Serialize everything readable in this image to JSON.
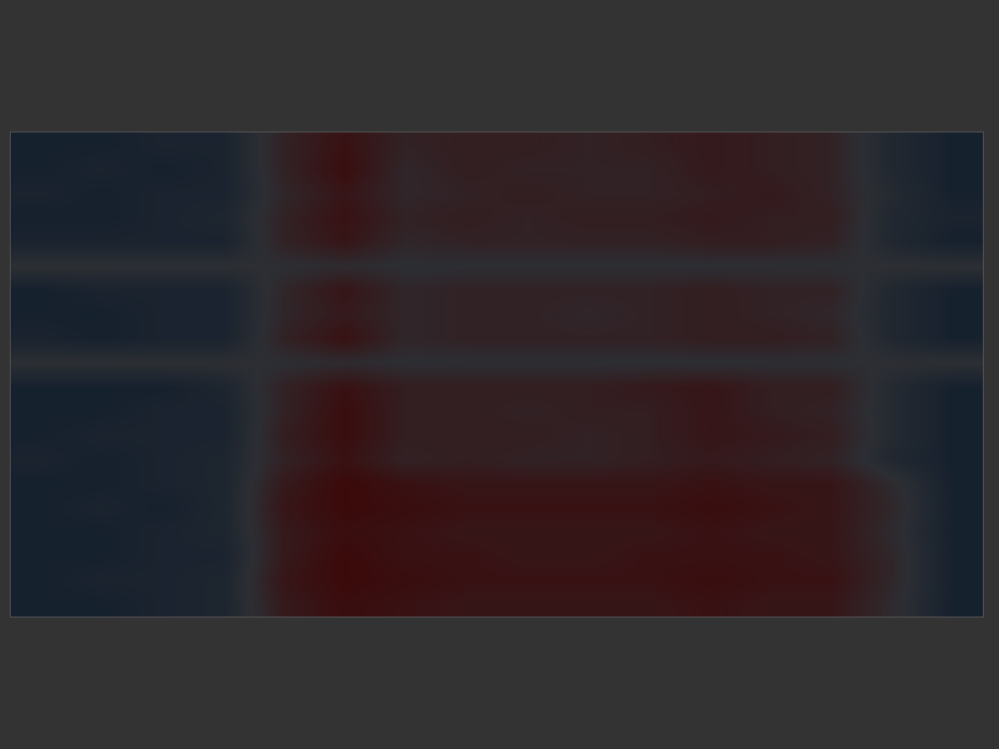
{
  "chart_data": {
    "type": "heatmap",
    "tick_labels": false,
    "grid": false,
    "xlim": [
      -0.5,
      15.5
    ],
    "ylim": [
      19.5,
      -0.5
    ],
    "zlim": [
      -1,
      1
    ],
    "colors": [
      "#08182a",
      "#2c2e33",
      "#3d0505"
    ],
    "z": [
      [
        -0.6,
        -0.6,
        -0.5,
        -0.5,
        0.3,
        0.7,
        0.3,
        0.4,
        0.4,
        0.3,
        0.4,
        0.5,
        0.4,
        0.3,
        -0.3,
        -0.6
      ],
      [
        -0.6,
        -0.5,
        -0.6,
        -0.5,
        0.3,
        0.8,
        0.2,
        0.4,
        0.3,
        0.3,
        0.3,
        0.5,
        0.4,
        0.3,
        -0.3,
        -0.6
      ],
      [
        -0.5,
        -0.6,
        -0.5,
        -0.5,
        0.2,
        0.6,
        0.2,
        0.3,
        0.4,
        0.3,
        0.3,
        0.4,
        0.5,
        0.3,
        -0.2,
        -0.6
      ],
      [
        -0.6,
        -0.6,
        -0.5,
        -0.4,
        0.3,
        0.7,
        0.3,
        0.4,
        0.3,
        0.4,
        0.4,
        0.5,
        0.4,
        0.4,
        -0.3,
        -0.5
      ],
      [
        -0.5,
        -0.5,
        -0.5,
        -0.5,
        0.3,
        0.6,
        0.2,
        0.3,
        0.3,
        0.3,
        0.3,
        0.4,
        0.4,
        0.3,
        -0.3,
        -0.6
      ],
      [
        0.0,
        0.0,
        0.0,
        0.0,
        0.0,
        0.1,
        0.0,
        0.0,
        0.0,
        0.0,
        0.0,
        0.0,
        0.0,
        0.0,
        0.0,
        0.0
      ],
      [
        -0.6,
        -0.5,
        -0.5,
        -0.5,
        0.2,
        0.6,
        0.2,
        0.3,
        0.3,
        0.3,
        0.3,
        0.4,
        0.3,
        0.3,
        -0.3,
        -0.6
      ],
      [
        -0.6,
        -0.6,
        -0.5,
        -0.5,
        0.2,
        0.5,
        0.2,
        0.3,
        0.3,
        0.2,
        0.3,
        0.4,
        0.3,
        0.2,
        -0.3,
        -0.6
      ],
      [
        -0.5,
        -0.6,
        -0.5,
        -0.5,
        0.3,
        0.7,
        0.2,
        0.3,
        0.3,
        0.3,
        0.3,
        0.4,
        0.4,
        0.3,
        -0.3,
        -0.6
      ],
      [
        0.0,
        0.0,
        0.0,
        0.0,
        0.0,
        0.1,
        0.0,
        0.0,
        0.0,
        0.0,
        0.0,
        0.0,
        0.0,
        0.0,
        0.0,
        0.0
      ],
      [
        -0.6,
        -0.6,
        -0.6,
        -0.4,
        0.3,
        0.7,
        0.4,
        0.4,
        0.4,
        0.4,
        0.5,
        0.6,
        0.4,
        0.4,
        -0.2,
        -0.6
      ],
      [
        -0.6,
        -0.6,
        -0.5,
        -0.5,
        0.3,
        0.8,
        0.4,
        0.4,
        0.3,
        0.4,
        0.4,
        0.6,
        0.4,
        0.3,
        -0.2,
        -0.6
      ],
      [
        -0.6,
        -0.5,
        -0.5,
        -0.5,
        0.4,
        0.8,
        0.4,
        0.4,
        0.4,
        0.3,
        0.4,
        0.6,
        0.5,
        0.4,
        -0.2,
        -0.6
      ],
      [
        -0.5,
        -0.6,
        -0.5,
        -0.4,
        0.3,
        0.7,
        0.3,
        0.4,
        0.3,
        0.3,
        0.4,
        0.5,
        0.4,
        0.3,
        -0.3,
        -0.6
      ],
      [
        -0.6,
        -0.6,
        -0.5,
        -0.4,
        0.5,
        0.9,
        0.7,
        0.6,
        0.6,
        0.6,
        0.6,
        0.7,
        0.6,
        0.6,
        0.1,
        -0.6
      ],
      [
        -0.6,
        -0.5,
        -0.6,
        -0.4,
        0.6,
        0.9,
        0.8,
        0.7,
        0.7,
        0.7,
        0.7,
        0.8,
        0.7,
        0.6,
        0.2,
        -0.6
      ],
      [
        -0.6,
        -0.6,
        -0.5,
        -0.4,
        0.5,
        0.8,
        0.7,
        0.6,
        0.6,
        0.6,
        0.6,
        0.7,
        0.6,
        0.6,
        0.1,
        -0.6
      ],
      [
        -0.6,
        -0.6,
        -0.5,
        -0.5,
        0.5,
        0.9,
        0.7,
        0.7,
        0.6,
        0.6,
        0.7,
        0.7,
        0.7,
        0.6,
        0.2,
        -0.6
      ],
      [
        -0.6,
        -0.5,
        -0.5,
        -0.4,
        0.6,
        0.9,
        0.8,
        0.7,
        0.7,
        0.7,
        0.7,
        0.8,
        0.7,
        0.7,
        0.2,
        -0.6
      ],
      [
        -0.6,
        -0.6,
        -0.5,
        -0.4,
        0.5,
        0.8,
        0.7,
        0.6,
        0.6,
        0.6,
        0.6,
        0.7,
        0.6,
        0.6,
        0.1,
        -0.6
      ]
    ]
  }
}
